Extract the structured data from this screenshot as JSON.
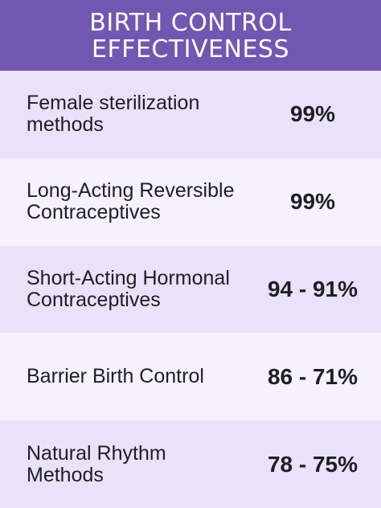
{
  "header": {
    "title_line1": "BIRTH CONTROL",
    "title_line2": "EFFECTIVENESS"
  },
  "rows": [
    {
      "label": "Female sterilization\nmethods",
      "value": "99%"
    },
    {
      "label": "Long-Acting Reversible\nContraceptives",
      "value": "99%"
    },
    {
      "label": "Short-Acting Hormonal\nContraceptives",
      "value": "94 - 91%"
    },
    {
      "label": "Barrier Birth Control",
      "value": "86 - 71%"
    },
    {
      "label": "Natural Rhythm\nMethods",
      "value": "78 - 75%"
    }
  ],
  "colors": {
    "header_bg": "#7157b1",
    "row_dark": "#e9e2f9",
    "row_light": "#f5f1fd",
    "text": "#1e1e24"
  }
}
